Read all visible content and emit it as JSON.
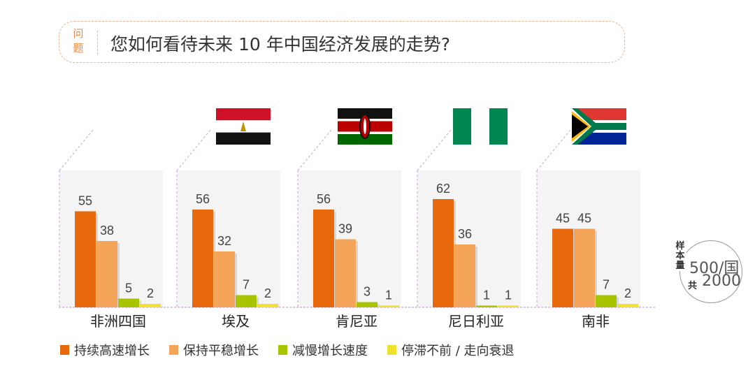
{
  "question": {
    "tag": "问题",
    "text": "您如何看待未来 10 年中国经济发展的走势?"
  },
  "sample": {
    "label": "样本量",
    "per_country": "500/国",
    "total_label": "共",
    "total": "2000"
  },
  "colors": {
    "series": [
      "#e8680c",
      "#f4a55a",
      "#a8c400",
      "#f0e030"
    ],
    "flag_egypt": [
      "#ce1126",
      "#ffffff",
      "#111111",
      "#c09300"
    ],
    "flag_kenya": [
      "#111111",
      "#bb0000",
      "#006600",
      "#ffffff"
    ],
    "flag_nigeria": [
      "#008751",
      "#ffffff"
    ],
    "flag_south_africa": [
      "#de3831",
      "#002395",
      "#007a4d",
      "#ffb612",
      "#000000",
      "#ffffff"
    ]
  },
  "chart_data": {
    "type": "bar",
    "title": "您如何看待未来 10 年中国经济发展的走势?",
    "categories": [
      "非洲四国",
      "埃及",
      "肯尼亚",
      "尼日利亚",
      "南非"
    ],
    "flags": [
      null,
      "egypt-flag-icon",
      "kenya-flag-icon",
      "nigeria-flag-icon",
      "south-africa-flag-icon"
    ],
    "series": [
      {
        "name": "持续高速增长",
        "values": [
          55,
          56,
          56,
          62,
          45
        ]
      },
      {
        "name": "保持平稳增长",
        "values": [
          38,
          32,
          39,
          36,
          45
        ]
      },
      {
        "name": "减慢增长速度",
        "values": [
          5,
          7,
          3,
          1,
          7
        ]
      },
      {
        "name": "停滞不前 / 走向衰退",
        "values": [
          2,
          2,
          1,
          1,
          2
        ]
      }
    ],
    "xlabel": "",
    "ylabel": "",
    "ylim": [
      0,
      62
    ],
    "legend": "bottom"
  }
}
